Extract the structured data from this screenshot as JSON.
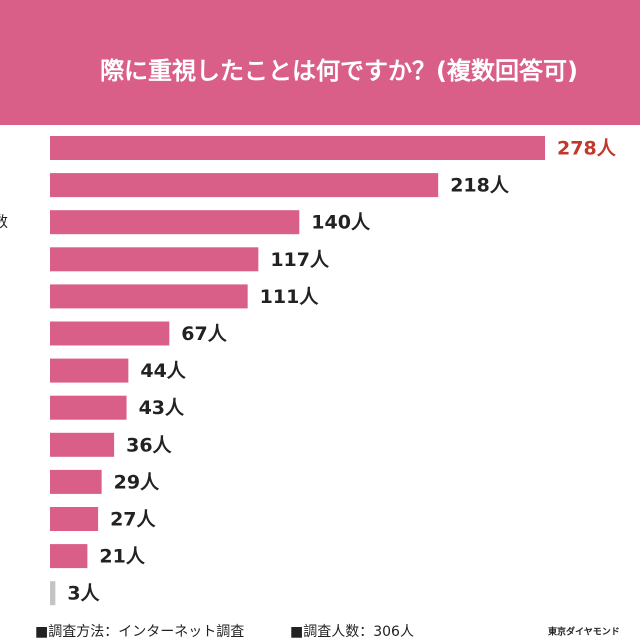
{
  "chart_data": {
    "type": "bar",
    "orientation": "horizontal",
    "title": "際に重視したことは何ですか？(複数回答可)",
    "categories": [
      null,
      null,
      "数",
      null,
      null,
      null,
      null,
      null,
      null,
      null,
      null,
      null,
      null
    ],
    "values": [
      278,
      218,
      140,
      117,
      111,
      67,
      44,
      43,
      36,
      29,
      27,
      21,
      3
    ],
    "value_labels": [
      "278人",
      "218人",
      "140人",
      "117人",
      "111人",
      "67人",
      "44人",
      "43人",
      "36人",
      "29人",
      "27人",
      "21人",
      "3人"
    ],
    "colors": [
      "#d95f88",
      "#d95f88",
      "#d95f88",
      "#d95f88",
      "#d95f88",
      "#d95f88",
      "#d95f88",
      "#d95f88",
      "#d95f88",
      "#d95f88",
      "#d95f88",
      "#d95f88",
      "#c4c4c4"
    ],
    "value_label_colors": [
      "#c0392b",
      "#222222",
      "#222222",
      "#222222",
      "#222222",
      "#222222",
      "#222222",
      "#222222",
      "#222222",
      "#222222",
      "#222222",
      "#222222",
      "#222222"
    ],
    "xlim": [
      0,
      280
    ],
    "footer": {
      "method": "■調査方法：インターネット調査",
      "count": "■調査人数：306人",
      "source": "東京ダイヤモンド"
    }
  }
}
